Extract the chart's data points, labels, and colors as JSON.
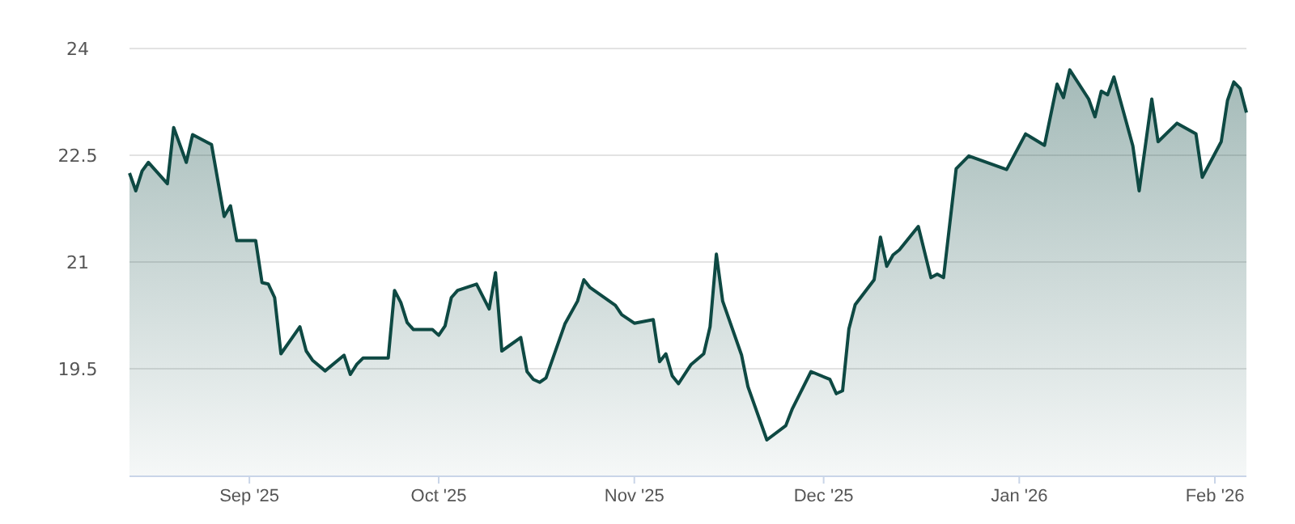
{
  "chart_data": {
    "type": "area",
    "x": [
      "2025-08-13",
      "2025-08-14",
      "2025-08-15",
      "2025-08-16",
      "2025-08-19",
      "2025-08-20",
      "2025-08-22",
      "2025-08-23",
      "2025-08-26",
      "2025-08-28",
      "2025-08-29",
      "2025-08-30",
      "2025-09-02",
      "2025-09-03",
      "2025-09-04",
      "2025-09-05",
      "2025-09-06",
      "2025-09-09",
      "2025-09-10",
      "2025-09-11",
      "2025-09-13",
      "2025-09-16",
      "2025-09-17",
      "2025-09-18",
      "2025-09-19",
      "2025-09-23",
      "2025-09-24",
      "2025-09-25",
      "2025-09-26",
      "2025-09-27",
      "2025-09-30",
      "2025-10-01",
      "2025-10-02",
      "2025-10-03",
      "2025-10-04",
      "2025-10-07",
      "2025-10-09",
      "2025-10-10",
      "2025-10-11",
      "2025-10-14",
      "2025-10-15",
      "2025-10-16",
      "2025-10-17",
      "2025-10-18",
      "2025-10-21",
      "2025-10-23",
      "2025-10-24",
      "2025-10-25",
      "2025-10-29",
      "2025-10-30",
      "2025-11-01",
      "2025-11-04",
      "2025-11-05",
      "2025-11-06",
      "2025-11-07",
      "2025-11-08",
      "2025-11-10",
      "2025-11-12",
      "2025-11-13",
      "2025-11-14",
      "2025-11-15",
      "2025-11-18",
      "2025-11-19",
      "2025-11-22",
      "2025-11-25",
      "2025-11-26",
      "2025-11-29",
      "2025-12-02",
      "2025-12-03",
      "2025-12-04",
      "2025-12-05",
      "2025-12-06",
      "2025-12-09",
      "2025-12-10",
      "2025-12-11",
      "2025-12-12",
      "2025-12-13",
      "2025-12-16",
      "2025-12-18",
      "2025-12-19",
      "2025-12-20",
      "2025-12-22",
      "2025-12-24",
      "2025-12-30",
      "2026-01-02",
      "2026-01-05",
      "2026-01-07",
      "2026-01-08",
      "2026-01-09",
      "2026-01-12",
      "2026-01-13",
      "2026-01-14",
      "2026-01-15",
      "2026-01-16",
      "2026-01-19",
      "2026-01-20",
      "2026-01-22",
      "2026-01-23",
      "2026-01-26",
      "2026-01-29",
      "2026-01-30",
      "2026-02-02",
      "2026-02-03",
      "2026-02-04",
      "2026-02-05",
      "2026-02-06"
    ],
    "series": [
      {
        "color": "#0e4943",
        "values": [
          22.25,
          22.0,
          22.28,
          22.4,
          22.1,
          22.89,
          22.4,
          22.79,
          22.65,
          21.64,
          21.79,
          21.3,
          21.3,
          20.71,
          20.69,
          20.5,
          19.71,
          20.09,
          19.75,
          19.62,
          19.47,
          19.69,
          19.42,
          19.56,
          19.65,
          19.65,
          20.6,
          20.43,
          20.15,
          20.05,
          20.05,
          19.97,
          20.1,
          20.5,
          20.6,
          20.69,
          20.34,
          20.85,
          19.75,
          19.94,
          19.46,
          19.35,
          19.31,
          19.37,
          20.13,
          20.45,
          20.75,
          20.64,
          20.39,
          20.26,
          20.14,
          20.19,
          19.6,
          19.71,
          19.4,
          19.29,
          19.56,
          19.71,
          20.09,
          21.11,
          20.45,
          19.69,
          19.25,
          18.5,
          18.7,
          18.93,
          19.46,
          19.35,
          19.15,
          19.19,
          20.06,
          20.4,
          20.75,
          21.35,
          20.94,
          21.1,
          21.17,
          21.5,
          20.78,
          20.83,
          20.78,
          22.31,
          22.49,
          22.3,
          22.8,
          22.64,
          23.5,
          23.31,
          23.7,
          23.29,
          23.04,
          23.4,
          23.35,
          23.6,
          22.63,
          22.0,
          23.29,
          22.69,
          22.95,
          22.8,
          22.19,
          22.69,
          23.27,
          23.53,
          23.44,
          23.1
        ]
      }
    ],
    "xlim": [
      "2025-08-13",
      "2026-02-06"
    ],
    "xticks": [
      {
        "value": "2025-09-01",
        "label": "Sep '25"
      },
      {
        "value": "2025-10-01",
        "label": "Oct '25"
      },
      {
        "value": "2025-11-01",
        "label": "Nov '25"
      },
      {
        "value": "2025-12-01",
        "label": "Dec '25"
      },
      {
        "value": "2026-01-01",
        "label": "Jan '26"
      },
      {
        "value": "2026-02-01",
        "label": "Feb '26"
      }
    ],
    "ylim": [
      18,
      24
    ],
    "yticks": [
      19.5,
      21,
      22.5,
      24
    ],
    "grid": "y"
  }
}
